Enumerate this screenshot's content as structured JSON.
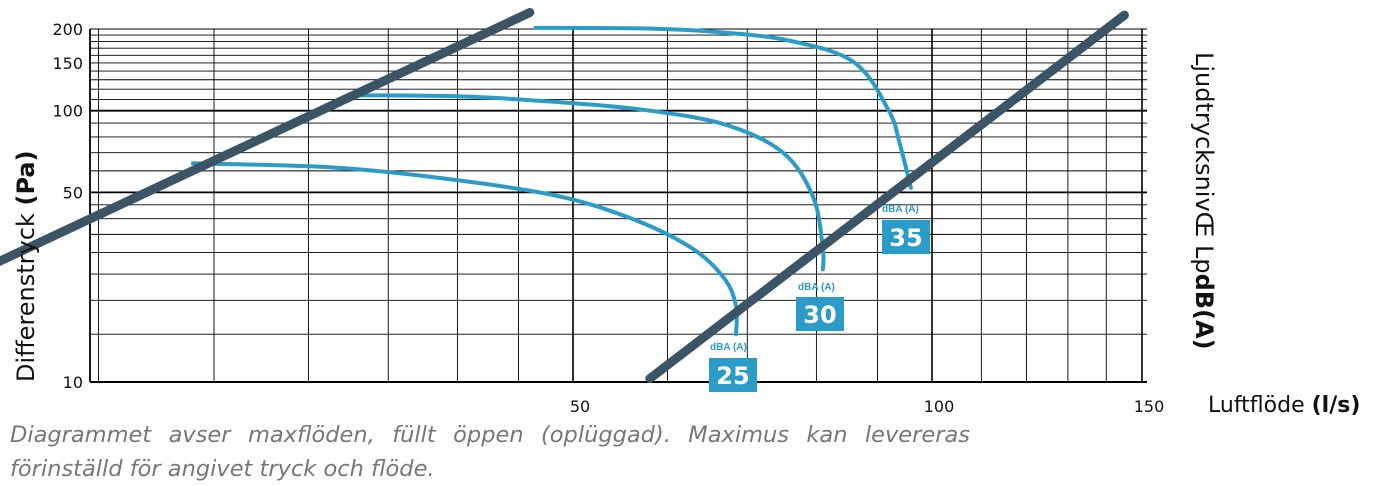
{
  "chart_data": {
    "type": "line",
    "xlabel": "Luftflöde",
    "xlabel_unit": "(l/s)",
    "ylabel": "Differenstryck",
    "ylabel_unit": "(Pa)",
    "right_label": "LjudtrycksnivŒ Lp",
    "right_label_unit": "dB(A)",
    "x_scale": "log",
    "y_scale": "log",
    "xlim": [
      10,
      150
    ],
    "ylim": [
      10,
      200
    ],
    "grid": true,
    "x_tick_labels": [
      "50",
      "100",
      "150"
    ],
    "x_ticks": [
      50,
      100,
      150
    ],
    "y_tick_labels": [
      "10",
      "50",
      "100",
      "150",
      "200"
    ],
    "y_ticks": [
      10,
      50,
      100,
      150,
      200
    ],
    "x_grid": [
      15,
      20,
      25,
      30,
      35,
      40,
      45,
      50,
      60,
      70,
      80,
      90,
      100,
      110,
      120,
      130,
      140,
      150
    ],
    "y_grid": [
      10,
      15,
      20,
      25,
      30,
      35,
      40,
      45,
      50,
      60,
      70,
      80,
      90,
      100,
      110,
      120,
      130,
      140,
      150,
      160,
      170,
      180,
      190,
      200
    ],
    "boundary_lines": [
      {
        "points": [
          [
            10.2,
            10.3
          ],
          [
            46,
            230
          ]
        ]
      },
      {
        "points": [
          [
            58,
            10.3
          ],
          [
            145,
            225
          ]
        ]
      }
    ],
    "series": [
      {
        "label": "25",
        "unit": "dBA (A)",
        "points": [
          [
            24,
            64
          ],
          [
            31,
            62
          ],
          [
            38,
            57
          ],
          [
            48,
            49
          ],
          [
            56,
            40
          ],
          [
            63,
            31
          ],
          [
            67,
            24
          ],
          [
            68.5,
            19
          ],
          [
            68.5,
            15
          ]
        ]
      },
      {
        "label": "30",
        "unit": "dBA (A)",
        "points": [
          [
            32.5,
            114
          ],
          [
            40,
            113
          ],
          [
            48,
            108
          ],
          [
            57,
            101
          ],
          [
            67,
            89
          ],
          [
            75,
            70
          ],
          [
            79.5,
            48
          ],
          [
            81,
            31
          ],
          [
            81,
            26
          ]
        ]
      },
      {
        "label": "35",
        "unit": "dBA (A)",
        "points": [
          [
            46.5,
            202
          ],
          [
            57,
            201
          ],
          [
            66,
            195
          ],
          [
            76,
            181
          ],
          [
            86,
            151
          ],
          [
            92,
            100
          ],
          [
            94,
            75
          ],
          [
            96,
            52
          ]
        ]
      }
    ]
  },
  "caption": {
    "line1": "Diagrammet avser maxflöden, füllt öppen (oplüggad). Maximus kan levereras",
    "line2": "förinställd för angivet tryck och flöde."
  },
  "colors": {
    "boundary": "#3b5566",
    "series": "#2b9bc8",
    "label_box": "#2b9bc8",
    "grid": "#000000"
  }
}
